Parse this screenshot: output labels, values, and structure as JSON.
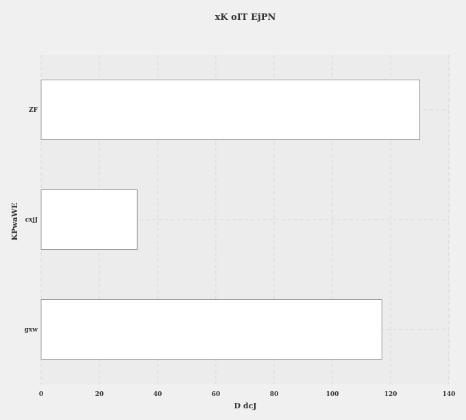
{
  "chart_data": {
    "type": "bar",
    "orientation": "horizontal",
    "title": "xK oIT EjPN",
    "xlabel": "D dcJ",
    "ylabel": "KPwaWE",
    "categories": [
      "ZF",
      "cxjJ",
      "gxw"
    ],
    "values": [
      130,
      33,
      117
    ],
    "xlim": [
      0,
      140
    ],
    "xticks": [
      "0",
      "20",
      "40",
      "60",
      "80",
      "100",
      "120",
      "140"
    ],
    "grid": true,
    "colors": {
      "background": "#f0f0f0",
      "plot_background": "#ececec",
      "bar_fill": "#ffffff",
      "bar_stroke": "#999999",
      "grid": "#d6d6d6"
    }
  }
}
